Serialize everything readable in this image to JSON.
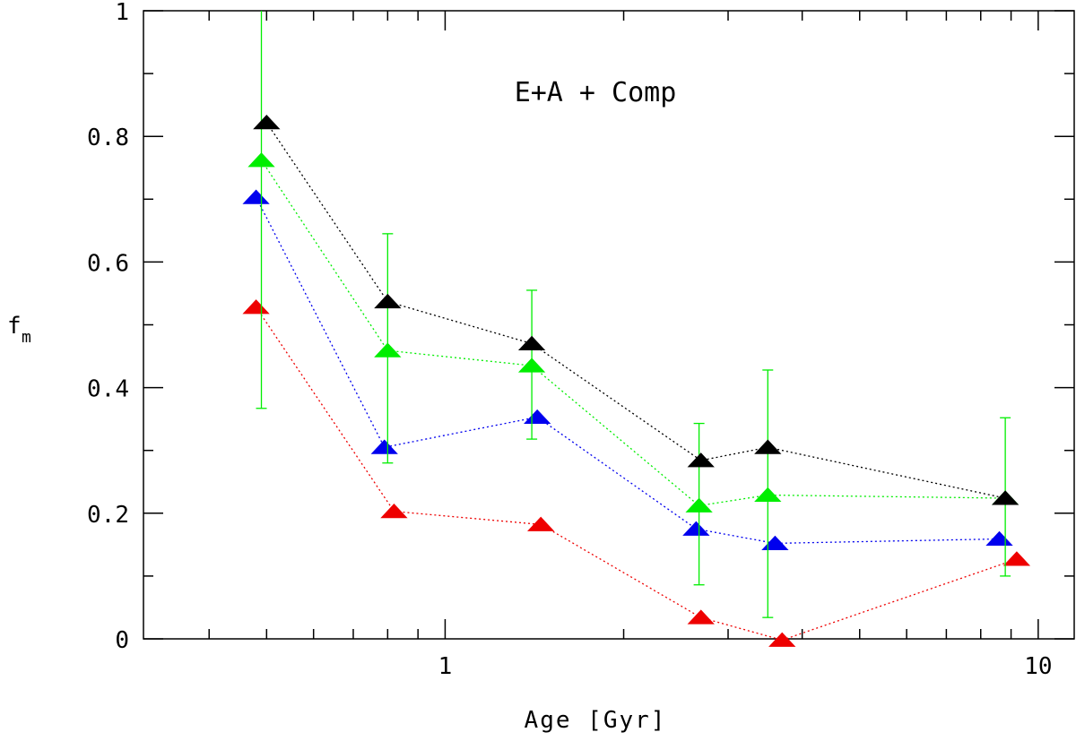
{
  "chart_data": {
    "type": "scatter",
    "x_scale": "log",
    "xlim": [
      0.31,
      11.5
    ],
    "ylim": [
      0,
      1
    ],
    "xlabel": "Age   [Gyr]",
    "ylabel": "f",
    "ylabel_subscript": "m",
    "annotation": "E+A + Comp",
    "x_tick_labels": [
      {
        "value": 1,
        "label": "1"
      },
      {
        "value": 10,
        "label": "10"
      }
    ],
    "x_minor_ticks": [
      0.4,
      0.5,
      0.6,
      0.7,
      0.8,
      0.9,
      2,
      3,
      4,
      5,
      6,
      7,
      8,
      9
    ],
    "y_tick_labels": [
      {
        "value": 0,
        "label": "0"
      },
      {
        "value": 0.2,
        "label": "0.2"
      },
      {
        "value": 0.4,
        "label": "0.4"
      },
      {
        "value": 0.6,
        "label": "0.6"
      },
      {
        "value": 0.8,
        "label": "0.8"
      },
      {
        "value": 1,
        "label": "1"
      }
    ],
    "y_minor_ticks": [
      0.1,
      0.3,
      0.5,
      0.7,
      0.9
    ],
    "marker": "filled-triangle",
    "line_style": "dotted",
    "series": [
      {
        "name": "black",
        "color": "#000000",
        "x": [
          0.5,
          0.8,
          1.4,
          2.7,
          3.5,
          8.8
        ],
        "y": [
          0.822,
          0.537,
          0.47,
          0.284,
          0.305,
          0.224
        ]
      },
      {
        "name": "green",
        "color": "#00ee00",
        "x": [
          0.49,
          0.8,
          1.4,
          2.68,
          3.5,
          8.8
        ],
        "y": [
          0.762,
          0.459,
          0.435,
          0.212,
          0.229,
          0.224
        ],
        "error_bars": {
          "upper": [
            1.0,
            0.645,
            0.555,
            0.343,
            0.428,
            0.352
          ],
          "lower": [
            0.367,
            0.28,
            0.318,
            0.086,
            0.034,
            0.1
          ]
        }
      },
      {
        "name": "blue",
        "color": "#0000ee",
        "x": [
          0.48,
          0.79,
          1.43,
          2.65,
          3.6,
          8.6
        ],
        "y": [
          0.703,
          0.305,
          0.353,
          0.175,
          0.152,
          0.159
        ]
      },
      {
        "name": "red",
        "color": "#ee0000",
        "x": [
          0.48,
          0.82,
          1.45,
          2.7,
          3.7,
          9.2
        ],
        "y": [
          0.528,
          0.203,
          0.182,
          0.034,
          -0.002,
          0.127
        ]
      }
    ]
  }
}
